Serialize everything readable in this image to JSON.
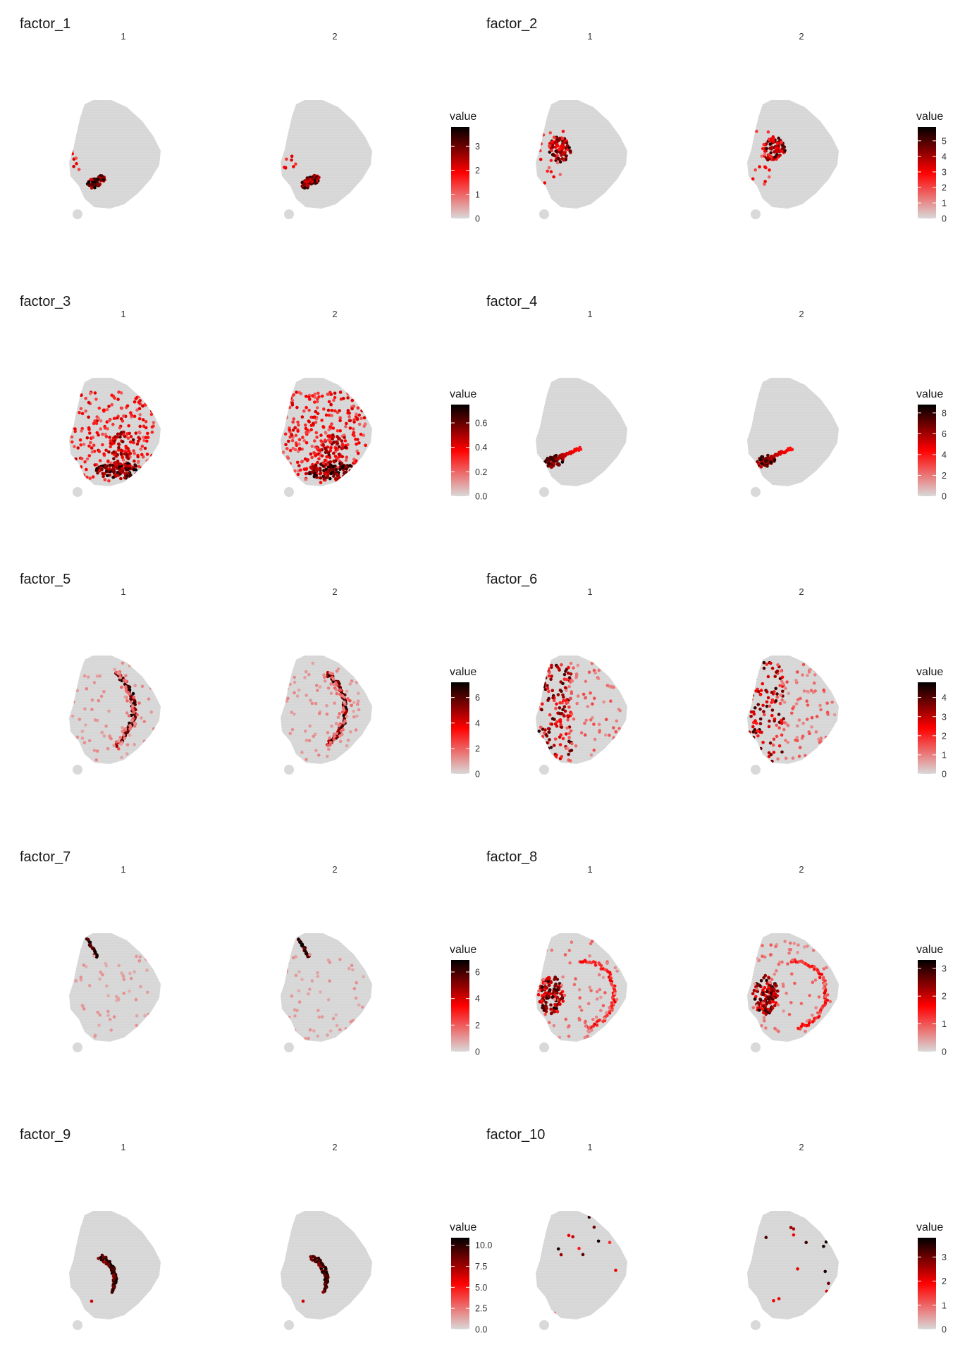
{
  "chart_data": {
    "type": "heatmap",
    "layout": "5 rows x 2 columns of factors; each factor shows samples 1 and 2",
    "colors": {
      "low": "#d9d9d9",
      "mid": "#ff0000",
      "high": "#000000",
      "tissue": "#d9d9d9"
    },
    "legend_title": "value",
    "factors": [
      {
        "title": "factor_1",
        "samples": [
          "1",
          "2"
        ],
        "scale": {
          "min": 0,
          "max": 3.8,
          "ticks": [
            "0",
            "1",
            "2",
            "3"
          ]
        },
        "hotspot": "lower-left-oval"
      },
      {
        "title": "factor_2",
        "samples": [
          "1",
          "2"
        ],
        "scale": {
          "min": 0,
          "max": 5.9,
          "ticks": [
            "0",
            "1",
            "2",
            "3",
            "4",
            "5"
          ]
        },
        "hotspot": "left-cluster"
      },
      {
        "title": "factor_3",
        "samples": [
          "1",
          "2"
        ],
        "scale": {
          "min": 0,
          "max": 0.75,
          "ticks": [
            "0.0",
            "0.2",
            "0.4",
            "0.6"
          ]
        },
        "hotspot": "diffuse-lower"
      },
      {
        "title": "factor_4",
        "samples": [
          "1",
          "2"
        ],
        "scale": {
          "min": 0,
          "max": 8.8,
          "ticks": [
            "0",
            "2",
            "4",
            "6",
            "8"
          ]
        },
        "hotspot": "lower-left-wedge"
      },
      {
        "title": "factor_5",
        "samples": [
          "1",
          "2"
        ],
        "scale": {
          "min": 0,
          "max": 7.2,
          "ticks": [
            "0",
            "2",
            "4",
            "6"
          ]
        },
        "hotspot": "central-arc"
      },
      {
        "title": "factor_6",
        "samples": [
          "1",
          "2"
        ],
        "scale": {
          "min": 0,
          "max": 4.8,
          "ticks": [
            "0",
            "1",
            "2",
            "3",
            "4"
          ]
        },
        "hotspot": "scattered-left"
      },
      {
        "title": "factor_7",
        "samples": [
          "1",
          "2"
        ],
        "scale": {
          "min": 0,
          "max": 6.9,
          "ticks": [
            "0",
            "2",
            "4",
            "6"
          ]
        },
        "hotspot": "upper-left-streak"
      },
      {
        "title": "factor_8",
        "samples": [
          "1",
          "2"
        ],
        "scale": {
          "min": 0,
          "max": 3.3,
          "ticks": [
            "0",
            "1",
            "2",
            "3"
          ]
        },
        "hotspot": "left-cluster-and-ring"
      },
      {
        "title": "factor_9",
        "samples": [
          "1",
          "2"
        ],
        "scale": {
          "min": 0,
          "max": 10.9,
          "ticks": [
            "0.0",
            "2.5",
            "5.0",
            "7.5",
            "10.0"
          ]
        },
        "hotspot": "double-arc"
      },
      {
        "title": "factor_10",
        "samples": [
          "1",
          "2"
        ],
        "scale": {
          "min": 0,
          "max": 3.8,
          "ticks": [
            "0",
            "1",
            "2",
            "3"
          ]
        },
        "hotspot": "sparse-dots"
      }
    ]
  }
}
